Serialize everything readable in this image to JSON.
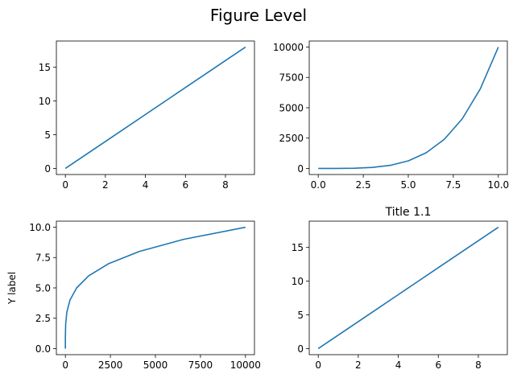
{
  "figure": {
    "title": "Figure Level"
  },
  "colors": {
    "line": "#1f77b4",
    "axis": "#000000",
    "background": "#ffffff"
  },
  "chart_data": [
    {
      "type": "line",
      "title": "",
      "xlabel": "",
      "ylabel": "",
      "xlim": [
        -0.45,
        9.45
      ],
      "ylim": [
        -0.9,
        18.9
      ],
      "xticks": [
        0,
        2,
        4,
        6,
        8
      ],
      "yticks": [
        0,
        5,
        10,
        15
      ],
      "grid": false,
      "series": [
        {
          "x": [
            0,
            1,
            2,
            3,
            4,
            5,
            6,
            7,
            8,
            9
          ],
          "y": [
            0,
            2,
            4,
            6,
            8,
            10,
            12,
            14,
            16,
            18
          ]
        }
      ]
    },
    {
      "type": "line",
      "title": "",
      "xlabel": "",
      "ylabel": "",
      "xlim": [
        -0.5,
        10.5
      ],
      "ylim": [
        -500,
        10500
      ],
      "xticks": [
        0.0,
        2.5,
        5.0,
        7.5,
        10.0
      ],
      "xtick_labels": [
        "0.0",
        "2.5",
        "5.0",
        "7.5",
        "10.0"
      ],
      "yticks": [
        0,
        2500,
        5000,
        7500,
        10000
      ],
      "grid": false,
      "series": [
        {
          "x": [
            0,
            1,
            2,
            3,
            4,
            5,
            6,
            7,
            8,
            9,
            10
          ],
          "y": [
            0,
            1,
            16,
            81,
            256,
            625,
            1296,
            2401,
            4096,
            6561,
            10000
          ]
        }
      ]
    },
    {
      "type": "line",
      "title": "",
      "xlabel": "",
      "ylabel": "Y label",
      "xlim": [
        -500,
        10500
      ],
      "ylim": [
        -0.5,
        10.5
      ],
      "xticks": [
        0,
        2500,
        5000,
        7500,
        10000
      ],
      "yticks": [
        0.0,
        2.5,
        5.0,
        7.5,
        10.0
      ],
      "ytick_labels": [
        "0.0",
        "2.5",
        "5.0",
        "7.5",
        "10.0"
      ],
      "grid": false,
      "series": [
        {
          "x": [
            0,
            1,
            16,
            81,
            256,
            625,
            1296,
            2401,
            4096,
            6561,
            10000
          ],
          "y": [
            0,
            1,
            2,
            3,
            4,
            5,
            6,
            7,
            8,
            9,
            10
          ]
        }
      ]
    },
    {
      "type": "line",
      "title": "Title 1.1",
      "xlabel": "",
      "ylabel": "",
      "xlim": [
        -0.45,
        9.45
      ],
      "ylim": [
        -0.9,
        18.9
      ],
      "xticks": [
        0,
        2,
        4,
        6,
        8
      ],
      "yticks": [
        0,
        5,
        10,
        15
      ],
      "grid": false,
      "series": [
        {
          "x": [
            0,
            1,
            2,
            3,
            4,
            5,
            6,
            7,
            8,
            9
          ],
          "y": [
            0,
            2,
            4,
            6,
            8,
            10,
            12,
            14,
            16,
            18
          ]
        }
      ]
    }
  ]
}
